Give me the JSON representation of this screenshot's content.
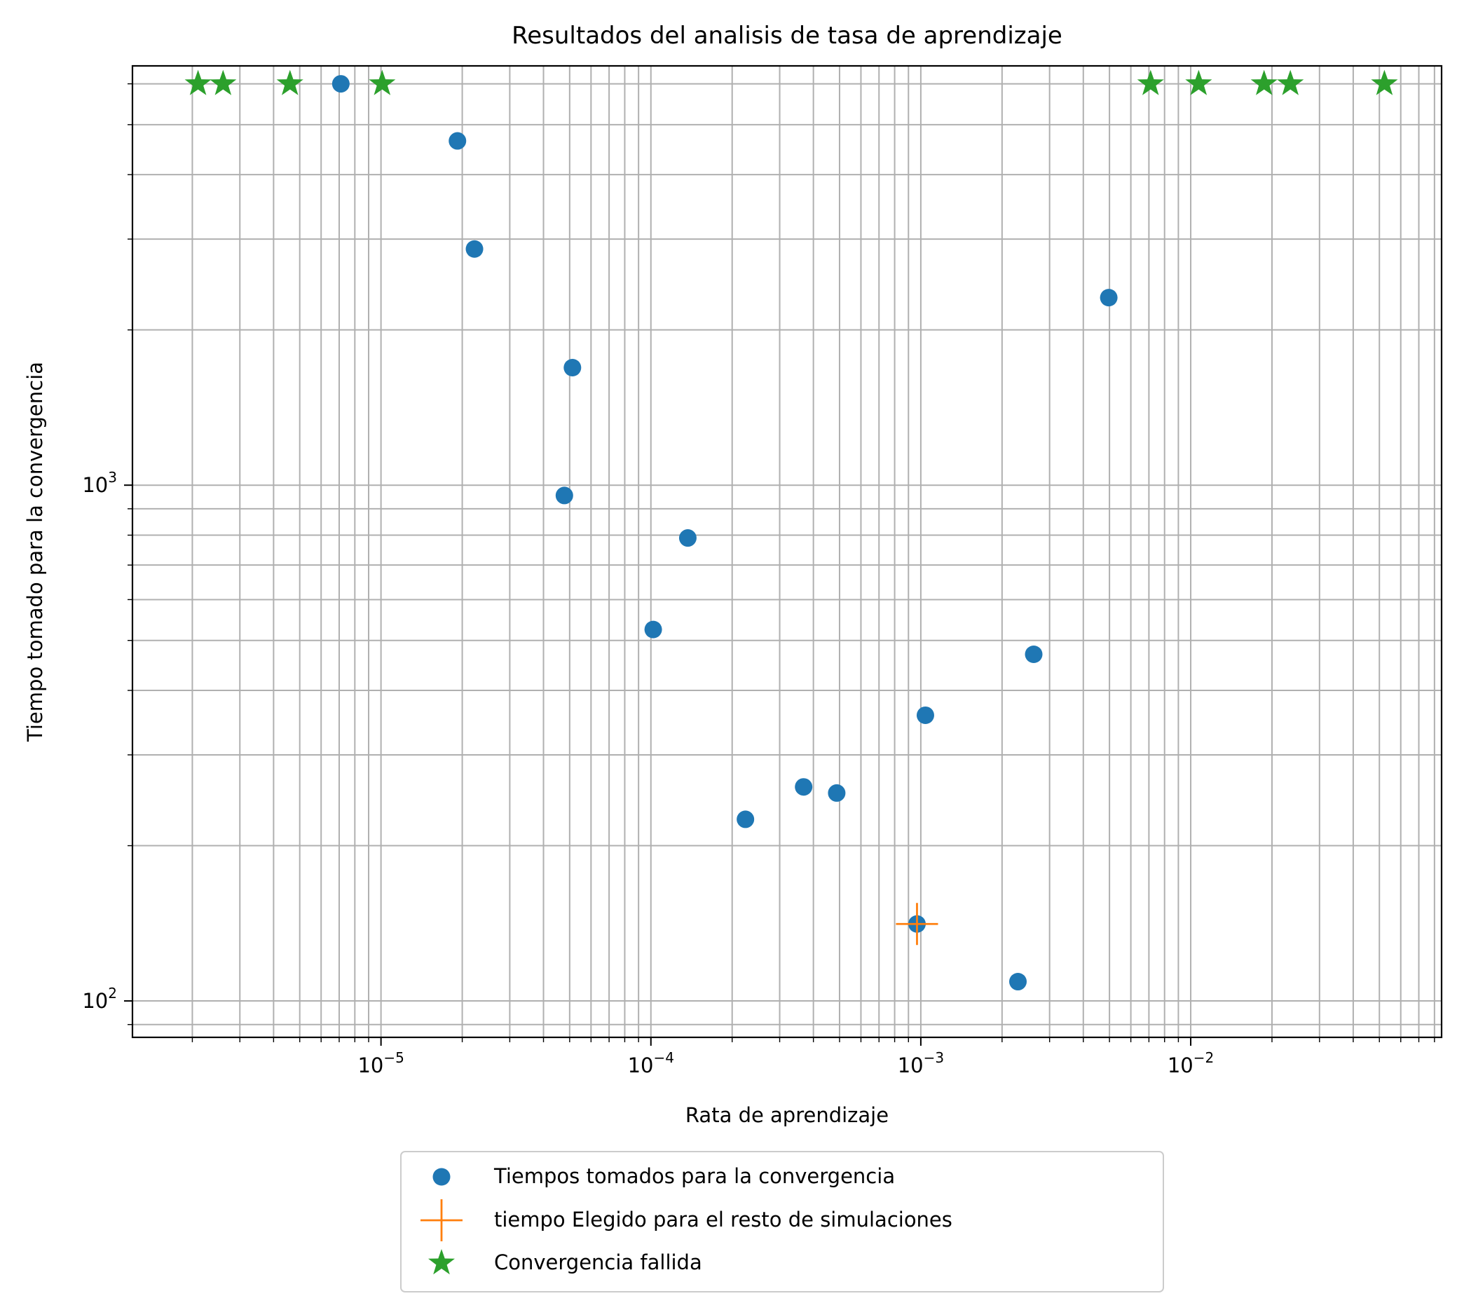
{
  "chart_data": {
    "type": "scatter",
    "title": "Resultados del analisis de tasa de aprendizaje",
    "xlabel": "Rata de aprendizaje",
    "ylabel": "Tiempo tomado para la convergencia",
    "x_scale": "log",
    "y_scale": "log",
    "xlim": [
      1.2e-06,
      0.085
    ],
    "ylim": [
      85,
      6500
    ],
    "grid": true,
    "legend_position": "bottom-center, below axes",
    "x_ticks": [
      {
        "value": 1e-05,
        "base": "10",
        "exp": "−5"
      },
      {
        "value": 0.0001,
        "base": "10",
        "exp": "−4"
      },
      {
        "value": 0.001,
        "base": "10",
        "exp": "−3"
      },
      {
        "value": 0.01,
        "base": "10",
        "exp": "−2"
      }
    ],
    "y_ticks": [
      {
        "value": 100,
        "base": "10",
        "exp": "2"
      },
      {
        "value": 1000,
        "base": "10",
        "exp": "3"
      }
    ],
    "series": [
      {
        "name": "Tiempos tomados para la convergencia",
        "marker": "circle",
        "color": "#1f77b4",
        "points": [
          {
            "x": 7.1e-06,
            "y": 6000
          },
          {
            "x": 1.92e-05,
            "y": 4650
          },
          {
            "x": 2.22e-05,
            "y": 2870
          },
          {
            "x": 4.78e-05,
            "y": 955
          },
          {
            "x": 5.12e-05,
            "y": 1690
          },
          {
            "x": 0.000102,
            "y": 525
          },
          {
            "x": 0.000137,
            "y": 790
          },
          {
            "x": 0.000224,
            "y": 225
          },
          {
            "x": 0.000368,
            "y": 260
          },
          {
            "x": 0.000488,
            "y": 253
          },
          {
            "x": 0.000968,
            "y": 141
          },
          {
            "x": 0.00104,
            "y": 358
          },
          {
            "x": 0.00229,
            "y": 109
          },
          {
            "x": 0.00262,
            "y": 470
          },
          {
            "x": 0.00497,
            "y": 2310
          }
        ]
      },
      {
        "name": "tiempo Elegido para el resto de simulaciones",
        "marker": "plus",
        "color": "#ff7f0e",
        "points": [
          {
            "x": 0.000968,
            "y": 141
          }
        ]
      },
      {
        "name": "Convergencia fallida",
        "marker": "star",
        "color": "#2ca02c",
        "points": [
          {
            "x": 2.1e-06,
            "y": 6000
          },
          {
            "x": 2.6e-06,
            "y": 6000
          },
          {
            "x": 4.6e-06,
            "y": 6000
          },
          {
            "x": 1.01e-05,
            "y": 6000
          },
          {
            "x": 0.0071,
            "y": 6000
          },
          {
            "x": 0.0107,
            "y": 6000
          },
          {
            "x": 0.0187,
            "y": 6000
          },
          {
            "x": 0.0234,
            "y": 6000
          },
          {
            "x": 0.0522,
            "y": 6000
          }
        ]
      }
    ]
  }
}
